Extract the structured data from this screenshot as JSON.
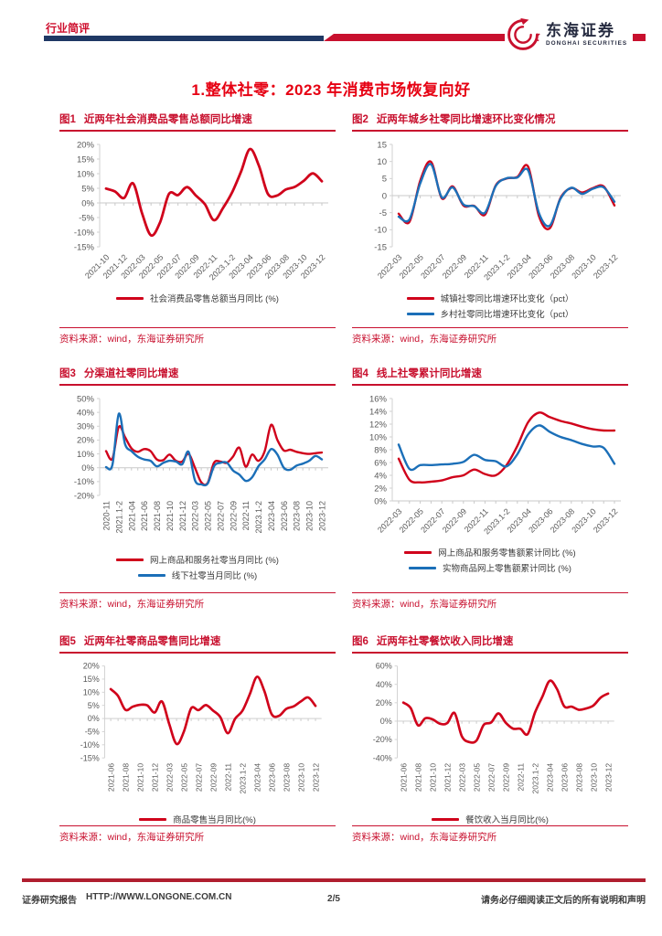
{
  "header": {
    "category": "行业简评",
    "logo_cn": "东海证券",
    "logo_en": "DONGHAI SECURITIES"
  },
  "title": "1.整体社零：2023 年消费市场恢复向好",
  "footer": {
    "report_type": "证券研究报告",
    "url": "HTTP://WWW.LONGONE.COM.CN",
    "page": "2/5",
    "disclaimer": "请务必仔细阅读正文后的所有说明和声明"
  },
  "colors": {
    "red": "#D0021B",
    "blue": "#1B6FB8",
    "title_red": "#E60012",
    "figure_red": "#C8102E",
    "navy": "#1F3864",
    "axis": "#C9C9C9",
    "tick_text": "#595959"
  },
  "chart_data": [
    {
      "fig_no": "图1",
      "title": "近两年社会消费品零售总额同比增速",
      "type": "line",
      "source": "资料来源：wind，东海证券研究所",
      "ylim": [
        -15,
        20
      ],
      "yticks": [
        20,
        15,
        10,
        5,
        0,
        -5,
        -10,
        -15
      ],
      "ytick_suffix": "%",
      "xtick_every": 2,
      "xtick_rotate": 45,
      "legend_position": "bottom",
      "grid": false,
      "x": [
        "2021-10",
        "2021-11",
        "2021-12",
        "2022.1-2",
        "2022-03",
        "2022-04",
        "2022-05",
        "2022-06",
        "2022-07",
        "2022-08",
        "2022-09",
        "2022-10",
        "2022-11",
        "2022-12",
        "2023.1-2",
        "2023-03",
        "2023-04",
        "2023-05",
        "2023-06",
        "2023-07",
        "2023-08",
        "2023-09",
        "2023-10",
        "2023-11",
        "2023-12"
      ],
      "series": [
        {
          "name": "社会消费品零售总额当月同比 (%)",
          "color": "red",
          "values": [
            4.9,
            3.9,
            1.7,
            6.7,
            -3.5,
            -11.1,
            -6.7,
            3.1,
            2.7,
            5.4,
            2.5,
            -0.5,
            -5.9,
            -1.8,
            3.5,
            10.6,
            18.4,
            12.7,
            3.1,
            2.5,
            4.6,
            5.5,
            7.6,
            10.1,
            7.4
          ]
        }
      ]
    },
    {
      "fig_no": "图2",
      "title": "近两年城乡社零同比增速环比变化情况",
      "type": "line",
      "source": "资料来源：wind，东海证券研究所",
      "ylim": [
        -15,
        15
      ],
      "yticks": [
        15,
        10,
        5,
        0,
        -5,
        -10,
        -15
      ],
      "ytick_suffix": "",
      "xtick_every": 2,
      "xtick_rotate": 45,
      "legend_position": "bottom",
      "grid": false,
      "x": [
        "2022-03",
        "2022-04",
        "2022-05",
        "2022-06",
        "2022-07",
        "2022-08",
        "2022-09",
        "2022-10",
        "2022-11",
        "2022-12",
        "2023.1-2",
        "2023-03",
        "2023-04",
        "2023-05",
        "2023-06",
        "2023-07",
        "2023-08",
        "2023-09",
        "2023-10",
        "2023-11",
        "2023-12"
      ],
      "series": [
        {
          "name": "城镇社零同比增速环比变化（pct）",
          "color": "red",
          "values": [
            -5.3,
            -7.7,
            4.4,
            9.9,
            -0.8,
            2.7,
            -2.9,
            -3.0,
            -5.6,
            3.0,
            5.0,
            5.5,
            8.5,
            -6.0,
            -9.6,
            -0.7,
            2.2,
            0.9,
            2.2,
            2.7,
            -2.9
          ]
        },
        {
          "name": "乡村社零同比增速环比变化（pct）",
          "color": "blue",
          "values": [
            -6.2,
            -7.0,
            3.6,
            9.2,
            -0.5,
            2.4,
            -2.6,
            -3.1,
            -5.0,
            2.8,
            5.1,
            5.3,
            7.4,
            -5.1,
            -8.8,
            -0.9,
            2.3,
            0.5,
            2.0,
            2.4,
            -1.8
          ]
        }
      ]
    },
    {
      "fig_no": "图3",
      "title": "分渠道社零同比增速",
      "type": "line",
      "source": "资料来源：wind，东海证券研究所",
      "ylim": [
        -20,
        50
      ],
      "yticks": [
        50,
        40,
        30,
        20,
        10,
        0,
        -10,
        -20
      ],
      "ytick_suffix": "%",
      "xtick_every": 2,
      "xtick_rotate": 90,
      "legend_position": "bottom",
      "grid": false,
      "x": [
        "2020-11",
        "2020-12",
        "2021.1-2",
        "2021-03",
        "2021-04",
        "2021-05",
        "2021-06",
        "2021-07",
        "2021-08",
        "2021-09",
        "2021-10",
        "2021-11",
        "2021-12",
        "2022.1-2",
        "2022-03",
        "2022-04",
        "2022-05",
        "2022-06",
        "2022-07",
        "2022-08",
        "2022-09",
        "2022-10",
        "2022-11",
        "2022-12",
        "2023.1-2",
        "2023-03",
        "2023-04",
        "2023-05",
        "2023-06",
        "2023-07",
        "2023-08",
        "2023-09",
        "2023-10",
        "2023-11",
        "2023-12"
      ],
      "series": [
        {
          "name": "网上商品和服务社零当月同比 (%)",
          "color": "red",
          "values": [
            12,
            6.5,
            29.5,
            22,
            14,
            11.5,
            13.5,
            12,
            6,
            5.5,
            9.5,
            5,
            4.5,
            10,
            0,
            -10.5,
            -11,
            3.5,
            4.5,
            3.5,
            8,
            14.5,
            0.8,
            9.5,
            5,
            12,
            31,
            20,
            12.5,
            13,
            11.5,
            10.5,
            10,
            10.5,
            11
          ]
        },
        {
          "name": "线下社零当月同比 (%)",
          "color": "blue",
          "values": [
            0.5,
            2,
            39,
            17,
            12,
            8,
            6,
            5,
            1,
            3.5,
            5,
            4.5,
            2.5,
            11.5,
            -9,
            -12,
            -11.5,
            1,
            3.5,
            3.8,
            -2,
            -5,
            -9.5,
            -7,
            1,
            6,
            13.5,
            9.5,
            0,
            -1.5,
            1.5,
            3,
            5,
            8.5,
            6
          ]
        }
      ]
    },
    {
      "fig_no": "图4",
      "title": "线上社零累计同比增速",
      "type": "line",
      "source": "资料来源：wind，东海证券研究所",
      "ylim": [
        0,
        16
      ],
      "yticks": [
        16,
        14,
        12,
        10,
        8,
        6,
        4,
        2,
        0
      ],
      "ytick_suffix": "%",
      "xtick_every": 2,
      "xtick_rotate": 45,
      "legend_position": "bottom",
      "grid": false,
      "x": [
        "2022-03",
        "2022-04",
        "2022-05",
        "2022-06",
        "2022-07",
        "2022-08",
        "2022-09",
        "2022-10",
        "2022-11",
        "2022-12",
        "2023.1-2",
        "2023-03",
        "2023-04",
        "2023-05",
        "2023-06",
        "2023-07",
        "2023-08",
        "2023-09",
        "2023-10",
        "2023-11",
        "2023-12"
      ],
      "series": [
        {
          "name": "网上商品和服务零售额累计同比 (%)",
          "color": "red",
          "values": [
            6.6,
            3.3,
            2.9,
            3.0,
            3.2,
            3.7,
            4.0,
            4.9,
            4.2,
            4.0,
            5.6,
            8.6,
            12.3,
            13.8,
            13.1,
            12.5,
            12.1,
            11.6,
            11.2,
            11.0,
            11.0
          ]
        },
        {
          "name": "实物商品网上零售额累计同比 (%)",
          "color": "blue",
          "values": [
            8.8,
            5.0,
            5.6,
            5.6,
            5.7,
            5.8,
            6.1,
            7.2,
            6.4,
            6.2,
            5.4,
            7.3,
            10.4,
            11.8,
            10.8,
            10.0,
            9.5,
            8.9,
            8.5,
            8.3,
            5.8
          ]
        }
      ]
    },
    {
      "fig_no": "图5",
      "title": "近两年社零商品零售同比增速",
      "type": "line",
      "source": "资料来源：wind，东海证券研究所",
      "ylim": [
        -15,
        20
      ],
      "yticks": [
        20,
        15,
        10,
        5,
        0,
        -5,
        -10,
        -15
      ],
      "ytick_suffix": "%",
      "xtick_every": 2,
      "xtick_rotate": 90,
      "legend_position": "bottom",
      "grid": false,
      "x": [
        "2021-06",
        "2021-07",
        "2021-08",
        "2021-09",
        "2021-10",
        "2021-11",
        "2021-12",
        "2022.1-2",
        "2022-03",
        "2022-04",
        "2022-05",
        "2022-06",
        "2022-07",
        "2022-08",
        "2022-09",
        "2022-10",
        "2022-11",
        "2022-12",
        "2023.1-2",
        "2023-03",
        "2023-04",
        "2023-05",
        "2023-06",
        "2023-07",
        "2023-08",
        "2023-09",
        "2023-10",
        "2023-11",
        "2023-12"
      ],
      "series": [
        {
          "name": "商品零售当月同比(%)",
          "color": "red",
          "values": [
            11.2,
            8.6,
            3.3,
            4.5,
            5.2,
            5.0,
            2.3,
            6.5,
            -2.1,
            -9.7,
            -5.0,
            3.9,
            3.2,
            5.1,
            3.0,
            0.5,
            -5.6,
            -0.1,
            2.9,
            9.1,
            15.9,
            10.5,
            1.7,
            1.0,
            3.7,
            4.6,
            6.5,
            8.0,
            4.8
          ]
        }
      ]
    },
    {
      "fig_no": "图6",
      "title": "近两年社零餐饮收入同比增速",
      "type": "line",
      "source": "资料来源：wind，东海证券研究所",
      "ylim": [
        -40,
        60
      ],
      "yticks": [
        60,
        40,
        20,
        0,
        -20,
        -40
      ],
      "ytick_suffix": "%",
      "xtick_every": 2,
      "xtick_rotate": 90,
      "legend_position": "bottom",
      "grid": false,
      "x": [
        "2021-06",
        "2021-07",
        "2021-08",
        "2021-09",
        "2021-10",
        "2021-11",
        "2021-12",
        "2022.1-2",
        "2022-03",
        "2022-04",
        "2022-05",
        "2022-06",
        "2022-07",
        "2022-08",
        "2022-09",
        "2022-10",
        "2022-11",
        "2022-12",
        "2023.1-2",
        "2023-03",
        "2023-04",
        "2023-05",
        "2023-06",
        "2023-07",
        "2023-08",
        "2023-09",
        "2023-10",
        "2023-11",
        "2023-12"
      ],
      "series": [
        {
          "name": "餐饮收入当月同比(%)",
          "color": "red",
          "values": [
            20.2,
            14.3,
            -4.5,
            3.1,
            2.0,
            -2.7,
            -2.2,
            8.9,
            -16.4,
            -22.7,
            -21.1,
            -4.0,
            -1.5,
            8.4,
            -1.7,
            -8.1,
            -8.4,
            -14.1,
            9.2,
            26.3,
            43.8,
            35.1,
            16.1,
            15.8,
            12.4,
            13.8,
            17.1,
            25.8,
            30.0
          ]
        }
      ]
    }
  ]
}
